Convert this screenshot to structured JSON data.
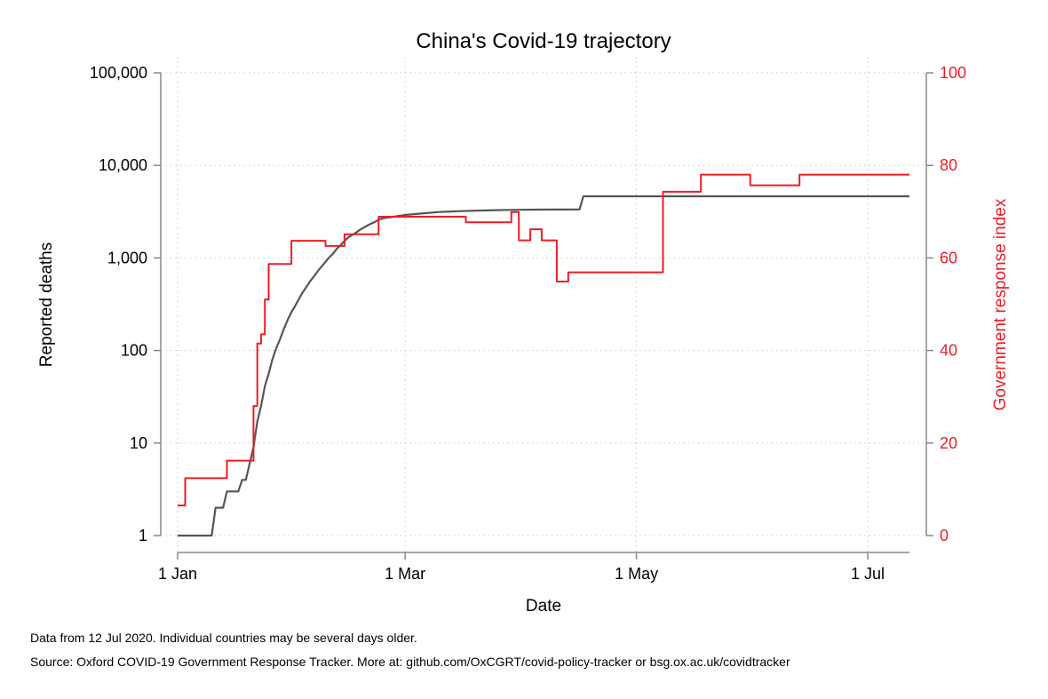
{
  "chart_data": {
    "type": "line",
    "title": "China's Covid-19 trajectory",
    "xlabel": "Date",
    "ylabel": "Reported deaths",
    "y2label": "Government response index",
    "x_ticks": [
      {
        "date": "2020-01-01",
        "label": "1 Jan"
      },
      {
        "date": "2020-03-01",
        "label": "1 Mar"
      },
      {
        "date": "2020-05-01",
        "label": "1 May"
      },
      {
        "date": "2020-07-01",
        "label": "1 Jul"
      }
    ],
    "xlim": [
      "2020-01-01",
      "2020-07-12"
    ],
    "y_scale": "log",
    "ylim": [
      1,
      100000
    ],
    "y_ticks": [
      {
        "value": 1,
        "label": "1"
      },
      {
        "value": 10,
        "label": "10"
      },
      {
        "value": 100,
        "label": "100"
      },
      {
        "value": 1000,
        "label": "1,000"
      },
      {
        "value": 10000,
        "label": "10,000"
      },
      {
        "value": 100000,
        "label": "100,000"
      }
    ],
    "y2lim": [
      0,
      100
    ],
    "y2_ticks": [
      {
        "value": 0,
        "label": "0"
      },
      {
        "value": 20,
        "label": "20"
      },
      {
        "value": 40,
        "label": "40"
      },
      {
        "value": 60,
        "label": "60"
      },
      {
        "value": 80,
        "label": "80"
      },
      {
        "value": 100,
        "label": "100"
      }
    ],
    "grid": true,
    "series": [
      {
        "axis": "left",
        "color": "#555555",
        "points": [
          [
            "2020-01-01",
            1
          ],
          [
            "2020-01-10",
            1
          ],
          [
            "2020-01-11",
            2
          ],
          [
            "2020-01-13",
            2
          ],
          [
            "2020-01-14",
            3
          ],
          [
            "2020-01-17",
            3
          ],
          [
            "2020-01-18",
            4
          ],
          [
            "2020-01-19",
            4
          ],
          [
            "2020-01-20",
            6
          ],
          [
            "2020-01-21",
            9
          ],
          [
            "2020-01-22",
            17
          ],
          [
            "2020-01-23",
            25
          ],
          [
            "2020-01-24",
            41
          ],
          [
            "2020-01-25",
            56
          ],
          [
            "2020-01-26",
            80
          ],
          [
            "2020-01-27",
            106
          ],
          [
            "2020-01-28",
            132
          ],
          [
            "2020-01-29",
            170
          ],
          [
            "2020-01-30",
            213
          ],
          [
            "2020-01-31",
            259
          ],
          [
            "2020-02-01",
            304
          ],
          [
            "2020-02-02",
            361
          ],
          [
            "2020-02-03",
            425
          ],
          [
            "2020-02-04",
            490
          ],
          [
            "2020-02-05",
            563
          ],
          [
            "2020-02-06",
            636
          ],
          [
            "2020-02-07",
            722
          ],
          [
            "2020-02-08",
            811
          ],
          [
            "2020-02-09",
            908
          ],
          [
            "2020-02-10",
            1016
          ],
          [
            "2020-02-11",
            1113
          ],
          [
            "2020-02-12",
            1259
          ],
          [
            "2020-02-13",
            1380
          ],
          [
            "2020-02-14",
            1523
          ],
          [
            "2020-02-15",
            1665
          ],
          [
            "2020-02-16",
            1770
          ],
          [
            "2020-02-17",
            1868
          ],
          [
            "2020-02-18",
            2004
          ],
          [
            "2020-02-19",
            2118
          ],
          [
            "2020-02-20",
            2236
          ],
          [
            "2020-02-21",
            2345
          ],
          [
            "2020-02-22",
            2442
          ],
          [
            "2020-02-23",
            2592
          ],
          [
            "2020-02-24",
            2663
          ],
          [
            "2020-02-25",
            2715
          ],
          [
            "2020-02-26",
            2744
          ],
          [
            "2020-02-27",
            2788
          ],
          [
            "2020-02-28",
            2835
          ],
          [
            "2020-02-29",
            2870
          ],
          [
            "2020-03-01",
            2912
          ],
          [
            "2020-03-05",
            3015
          ],
          [
            "2020-03-10",
            3136
          ],
          [
            "2020-03-15",
            3199
          ],
          [
            "2020-03-20",
            3248
          ],
          [
            "2020-03-25",
            3281
          ],
          [
            "2020-03-31",
            3309
          ],
          [
            "2020-04-05",
            3329
          ],
          [
            "2020-04-10",
            3336
          ],
          [
            "2020-04-16",
            3342
          ],
          [
            "2020-04-17",
            4632
          ],
          [
            "2020-07-12",
            4634
          ]
        ]
      },
      {
        "axis": "right",
        "color": "#ee1c25",
        "points": [
          [
            "2020-01-01",
            6.5
          ],
          [
            "2020-01-03",
            6.5
          ],
          [
            "2020-01-03",
            12.4
          ],
          [
            "2020-01-14",
            12.4
          ],
          [
            "2020-01-14",
            16.2
          ],
          [
            "2020-01-21",
            16.2
          ],
          [
            "2020-01-21",
            28
          ],
          [
            "2020-01-22",
            28
          ],
          [
            "2020-01-22",
            41.5
          ],
          [
            "2020-01-23",
            41.5
          ],
          [
            "2020-01-23",
            43.5
          ],
          [
            "2020-01-24",
            43.5
          ],
          [
            "2020-01-24",
            51
          ],
          [
            "2020-01-25",
            51
          ],
          [
            "2020-01-25",
            58.7
          ],
          [
            "2020-01-31",
            58.7
          ],
          [
            "2020-01-31",
            63.7
          ],
          [
            "2020-02-09",
            63.7
          ],
          [
            "2020-02-09",
            62.6
          ],
          [
            "2020-02-14",
            62.6
          ],
          [
            "2020-02-14",
            65.1
          ],
          [
            "2020-02-23",
            65.1
          ],
          [
            "2020-02-23",
            68.9
          ],
          [
            "2020-03-17",
            68.9
          ],
          [
            "2020-03-17",
            67.7
          ],
          [
            "2020-03-29",
            67.7
          ],
          [
            "2020-03-29",
            69.9
          ],
          [
            "2020-03-31",
            69.9
          ],
          [
            "2020-03-31",
            63.8
          ],
          [
            "2020-04-03",
            63.8
          ],
          [
            "2020-04-03",
            66.2
          ],
          [
            "2020-04-06",
            66.2
          ],
          [
            "2020-04-06",
            63.8
          ],
          [
            "2020-04-10",
            63.8
          ],
          [
            "2020-04-10",
            54.9
          ],
          [
            "2020-04-13",
            54.9
          ],
          [
            "2020-04-13",
            56.9
          ],
          [
            "2020-05-08",
            56.9
          ],
          [
            "2020-05-08",
            74.3
          ],
          [
            "2020-05-18",
            74.3
          ],
          [
            "2020-05-18",
            78
          ],
          [
            "2020-05-31",
            78
          ],
          [
            "2020-05-31",
            75.7
          ],
          [
            "2020-06-13",
            75.7
          ],
          [
            "2020-06-13",
            78
          ],
          [
            "2020-07-12",
            78
          ]
        ]
      }
    ],
    "notes": [
      "Data from 12 Jul 2020. Individual countries may be several days older.",
      "Source: Oxford COVID-19 Government Response Tracker. More at: github.com/OxCGRT/covid-policy-tracker or bsg.ox.ac.uk/covidtracker"
    ]
  }
}
